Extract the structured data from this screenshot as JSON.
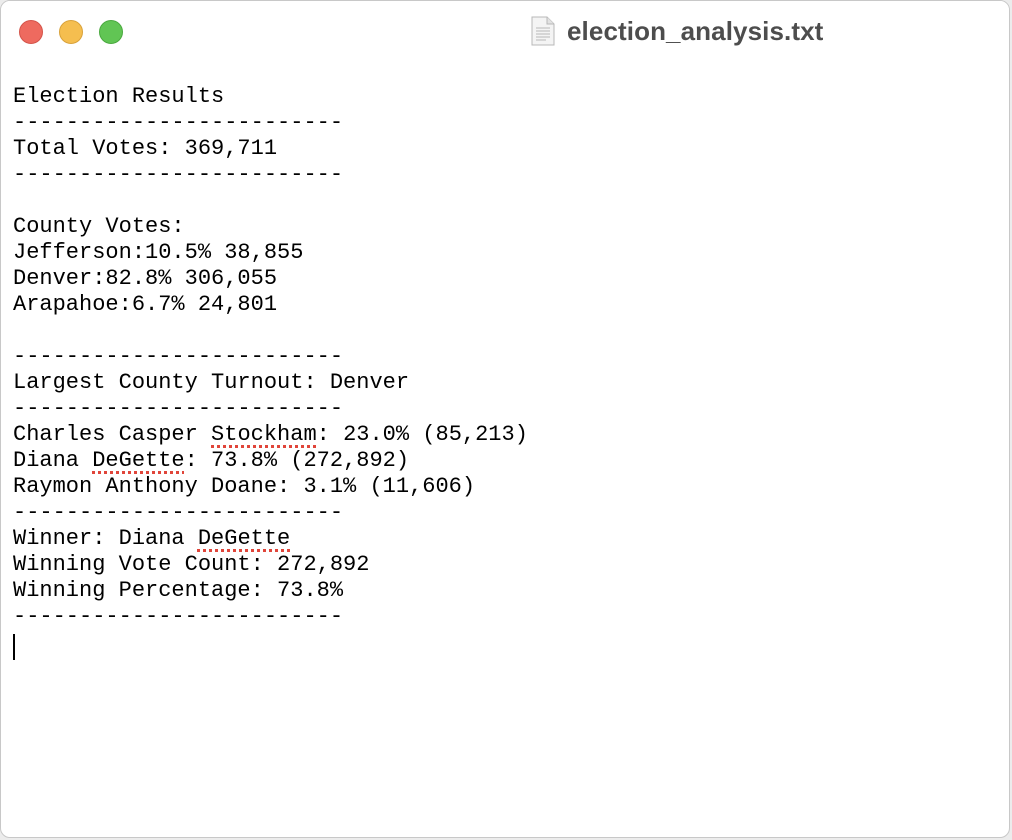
{
  "window": {
    "title": "election_analysis.txt",
    "document_icon": "text-document-icon",
    "controls": [
      "close",
      "minimize",
      "zoom"
    ],
    "colors": {
      "close": "#ee6a5f",
      "minimize": "#f5be4f",
      "zoom": "#61c554",
      "spellcheck_underline": "#e0453a"
    }
  },
  "document": {
    "heading": "Election Results",
    "divider": "-------------------------",
    "total_votes": "Total Votes: 369,711",
    "county_header": "County Votes:",
    "counties": [
      "Jefferson:10.5% 38,855",
      "Denver:82.8% 306,055",
      "Arapahoe:6.7% 24,801"
    ],
    "largest_county": "Largest County Turnout: Denver",
    "candidates": [
      {
        "before": "Charles Casper ",
        "flagged": "Stockham",
        "after": ": 23.0% (85,213)"
      },
      {
        "before": "Diana ",
        "flagged": "DeGette",
        "after": ": 73.8% (272,892)"
      },
      {
        "before": "",
        "flagged": "",
        "after": "Raymon Anthony Doane: 3.1% (11,606)"
      }
    ],
    "winner": {
      "before": "Winner: Diana ",
      "flagged": "DeGette"
    },
    "winning_vote_count": "Winning Vote Count: 272,892",
    "winning_percentage": "Winning Percentage: 73.8%"
  }
}
